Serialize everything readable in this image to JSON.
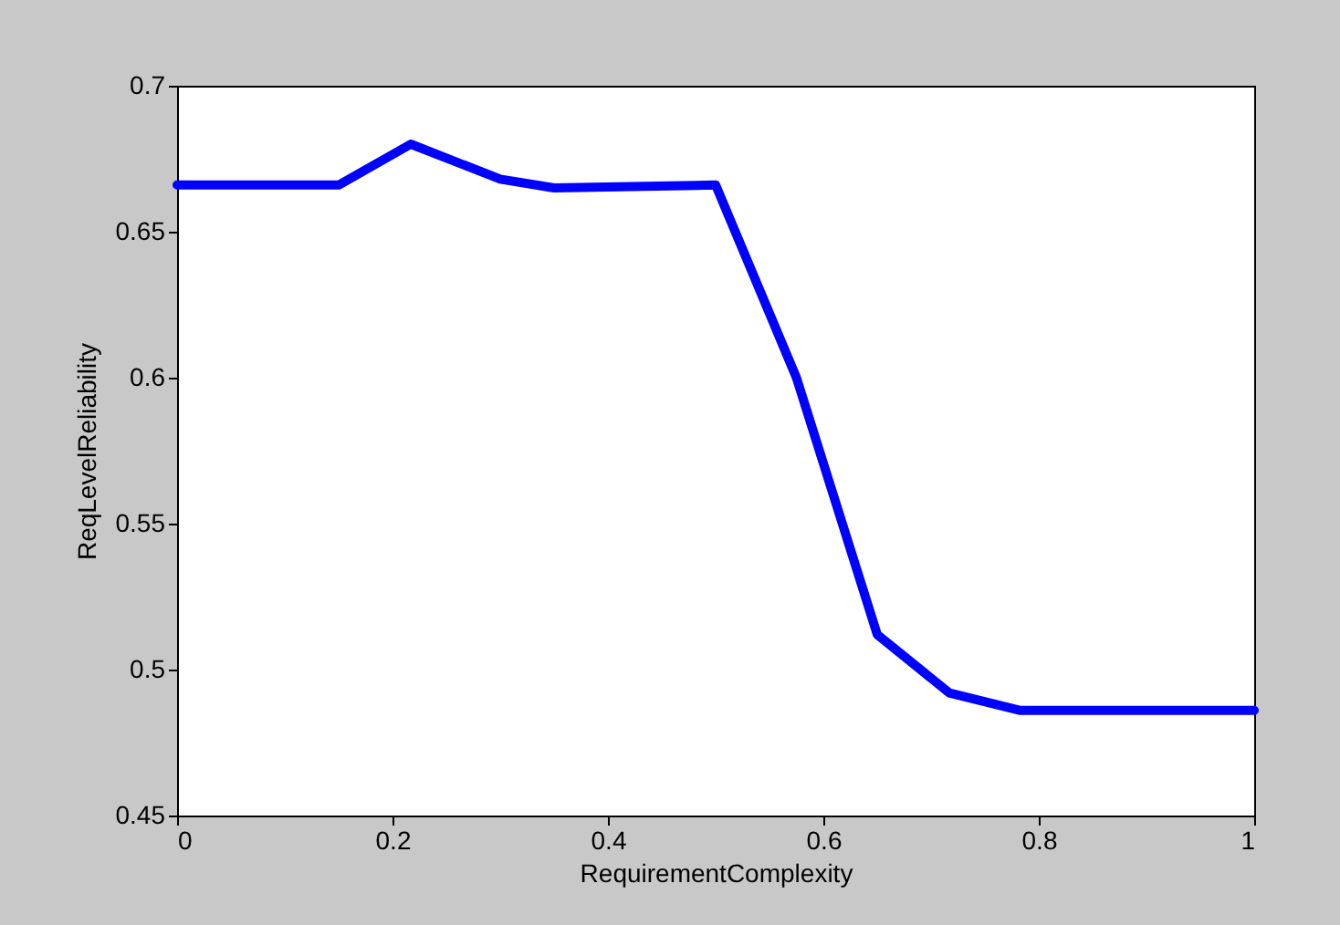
{
  "chart_data": {
    "type": "line",
    "xlabel": "RequirementComplexity",
    "ylabel": "ReqLevelReliability",
    "x": [
      0,
      0.15,
      0.217,
      0.3,
      0.35,
      0.5,
      0.575,
      0.65,
      0.717,
      0.783,
      1
    ],
    "series": [
      {
        "color": "#0000ff",
        "values": [
          0.666,
          0.666,
          0.68,
          0.668,
          0.665,
          0.666,
          0.6,
          0.512,
          0.492,
          0.486,
          0.486
        ]
      }
    ],
    "xlim": [
      0,
      1
    ],
    "xticks": [
      0,
      0.2,
      0.4,
      0.6,
      0.8,
      1
    ],
    "ylim": [
      0.45,
      0.7
    ],
    "yticks": [
      0.45,
      0.5,
      0.55,
      0.6,
      0.65,
      0.7
    ],
    "grid": false,
    "legend": false,
    "marker": "none",
    "line_style": "solid"
  }
}
